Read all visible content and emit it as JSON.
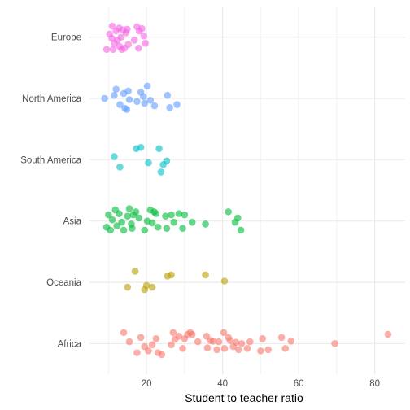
{
  "chart_data": {
    "type": "scatter",
    "title": "",
    "xlabel": "Student to teacher ratio",
    "ylabel": "",
    "xlim": [
      5,
      88
    ],
    "x_ticks": [
      20,
      40,
      60,
      80
    ],
    "x_tick_labels": [
      "20",
      "40",
      "60",
      "80"
    ],
    "grid": "major and minor vertical and horizontal",
    "legend": "none",
    "categories": [
      "Europe",
      "North America",
      "South America",
      "Asia",
      "Oceania",
      "Africa"
    ],
    "series": [
      {
        "category": "Europe",
        "color": "#F564E3",
        "points": [
          {
            "x": 9.5,
            "y": -0.2
          },
          {
            "x": 10.3,
            "y": 0.05
          },
          {
            "x": 11.0,
            "y": 0.18
          },
          {
            "x": 11.5,
            "y": -0.1
          },
          {
            "x": 12.0,
            "y": 0.1
          },
          {
            "x": 12.4,
            "y": -0.05
          },
          {
            "x": 12.8,
            "y": 0.15
          },
          {
            "x": 13.3,
            "y": 0.0
          },
          {
            "x": 13.8,
            "y": 0.12
          },
          {
            "x": 14.2,
            "y": -0.18
          },
          {
            "x": 14.6,
            "y": 0.07
          },
          {
            "x": 15.2,
            "y": -0.12
          },
          {
            "x": 11.2,
            "y": -0.2
          },
          {
            "x": 12.9,
            "y": -0.15
          },
          {
            "x": 17.5,
            "y": 0.17
          },
          {
            "x": 18.1,
            "y": 0.1
          },
          {
            "x": 18.8,
            "y": 0.14
          },
          {
            "x": 19.3,
            "y": 0.02
          },
          {
            "x": 16.8,
            "y": -0.05
          },
          {
            "x": 17.9,
            "y": -0.18
          },
          {
            "x": 19.7,
            "y": -0.1
          },
          {
            "x": 10.9,
            "y": -0.02
          },
          {
            "x": 14.9,
            "y": 0.13
          },
          {
            "x": 13.5,
            "y": -0.2
          }
        ]
      },
      {
        "category": "North America",
        "color": "#619CFF",
        "points": [
          {
            "x": 9.0,
            "y": 0.0
          },
          {
            "x": 11.5,
            "y": 0.05
          },
          {
            "x": 12.0,
            "y": 0.15
          },
          {
            "x": 13.0,
            "y": -0.1
          },
          {
            "x": 14.0,
            "y": 0.08
          },
          {
            "x": 14.3,
            "y": -0.16
          },
          {
            "x": 15.2,
            "y": 0.12
          },
          {
            "x": 15.5,
            "y": -0.02
          },
          {
            "x": 14.8,
            "y": -0.18
          },
          {
            "x": 17.5,
            "y": -0.05
          },
          {
            "x": 18.5,
            "y": 0.1
          },
          {
            "x": 19.2,
            "y": 0.03
          },
          {
            "x": 20.2,
            "y": 0.2
          },
          {
            "x": 21.0,
            "y": -0.03
          },
          {
            "x": 22.1,
            "y": -0.12
          },
          {
            "x": 25.5,
            "y": 0.05
          },
          {
            "x": 26.1,
            "y": -0.15
          },
          {
            "x": 28.0,
            "y": -0.1
          },
          {
            "x": 19.5,
            "y": -0.08
          }
        ]
      },
      {
        "category": "South America",
        "color": "#00BFC4",
        "points": [
          {
            "x": 11.5,
            "y": 0.05
          },
          {
            "x": 13.0,
            "y": -0.12
          },
          {
            "x": 17.3,
            "y": 0.18
          },
          {
            "x": 18.5,
            "y": 0.2
          },
          {
            "x": 20.5,
            "y": -0.05
          },
          {
            "x": 23.3,
            "y": 0.18
          },
          {
            "x": 23.8,
            "y": -0.2
          },
          {
            "x": 24.4,
            "y": -0.08
          },
          {
            "x": 25.3,
            "y": -0.02
          }
        ]
      },
      {
        "category": "Asia",
        "color": "#00BA38",
        "points": [
          {
            "x": 9.5,
            "y": -0.1
          },
          {
            "x": 10.0,
            "y": 0.1
          },
          {
            "x": 10.5,
            "y": -0.15
          },
          {
            "x": 11.0,
            "y": 0.02
          },
          {
            "x": 11.8,
            "y": 0.18
          },
          {
            "x": 12.2,
            "y": -0.08
          },
          {
            "x": 12.8,
            "y": 0.12
          },
          {
            "x": 13.5,
            "y": -0.02
          },
          {
            "x": 15.0,
            "y": 0.08
          },
          {
            "x": 15.5,
            "y": 0.2
          },
          {
            "x": 16.0,
            "y": -0.05
          },
          {
            "x": 16.5,
            "y": 0.1
          },
          {
            "x": 16.2,
            "y": -0.12
          },
          {
            "x": 17.2,
            "y": 0.15
          },
          {
            "x": 18.0,
            "y": 0.05
          },
          {
            "x": 19.5,
            "y": -0.15
          },
          {
            "x": 20.2,
            "y": 0.0
          },
          {
            "x": 21.0,
            "y": 0.18
          },
          {
            "x": 21.5,
            "y": -0.03
          },
          {
            "x": 22.0,
            "y": 0.15
          },
          {
            "x": 22.5,
            "y": 0.12
          },
          {
            "x": 23.0,
            "y": -0.1
          },
          {
            "x": 25.0,
            "y": 0.08
          },
          {
            "x": 25.3,
            "y": -0.12
          },
          {
            "x": 26.5,
            "y": 0.1
          },
          {
            "x": 27.2,
            "y": -0.02
          },
          {
            "x": 28.5,
            "y": 0.12
          },
          {
            "x": 29.5,
            "y": -0.12
          },
          {
            "x": 30.0,
            "y": 0.1
          },
          {
            "x": 32.0,
            "y": -0.02
          },
          {
            "x": 35.5,
            "y": -0.05
          },
          {
            "x": 41.5,
            "y": 0.15
          },
          {
            "x": 43.3,
            "y": -0.02
          },
          {
            "x": 44.0,
            "y": 0.05
          },
          {
            "x": 44.8,
            "y": -0.15
          },
          {
            "x": 14.0,
            "y": -0.15
          }
        ]
      },
      {
        "category": "Oceania",
        "color": "#B79F00",
        "points": [
          {
            "x": 15.0,
            "y": -0.08
          },
          {
            "x": 17.0,
            "y": 0.18
          },
          {
            "x": 19.5,
            "y": -0.12
          },
          {
            "x": 20.0,
            "y": -0.05
          },
          {
            "x": 21.5,
            "y": -0.08
          },
          {
            "x": 25.5,
            "y": 0.1
          },
          {
            "x": 26.5,
            "y": 0.12
          },
          {
            "x": 35.5,
            "y": 0.12
          },
          {
            "x": 40.5,
            "y": 0.02
          }
        ]
      },
      {
        "category": "Africa",
        "color": "#F8766D",
        "points": [
          {
            "x": 14.0,
            "y": 0.18
          },
          {
            "x": 15.5,
            "y": 0.03
          },
          {
            "x": 17.5,
            "y": -0.15
          },
          {
            "x": 18.5,
            "y": 0.1
          },
          {
            "x": 19.5,
            "y": -0.05
          },
          {
            "x": 20.5,
            "y": -0.12
          },
          {
            "x": 21.5,
            "y": -0.02
          },
          {
            "x": 22.5,
            "y": 0.08
          },
          {
            "x": 23.0,
            "y": -0.15
          },
          {
            "x": 24.0,
            "y": -0.18
          },
          {
            "x": 26.5,
            "y": -0.02
          },
          {
            "x": 27.0,
            "y": 0.18
          },
          {
            "x": 27.5,
            "y": 0.07
          },
          {
            "x": 28.5,
            "y": 0.12
          },
          {
            "x": 29.5,
            "y": -0.08
          },
          {
            "x": 30.0,
            "y": 0.08
          },
          {
            "x": 30.8,
            "y": 0.15
          },
          {
            "x": 31.5,
            "y": 0.18
          },
          {
            "x": 32.0,
            "y": 0.15
          },
          {
            "x": 33.5,
            "y": 0.03
          },
          {
            "x": 35.8,
            "y": 0.12
          },
          {
            "x": 36.0,
            "y": -0.07
          },
          {
            "x": 36.8,
            "y": 0.05
          },
          {
            "x": 37.5,
            "y": 0.04
          },
          {
            "x": 38.5,
            "y": -0.1
          },
          {
            "x": 39.0,
            "y": 0.03
          },
          {
            "x": 40.3,
            "y": 0.18
          },
          {
            "x": 40.5,
            "y": -0.08
          },
          {
            "x": 41.5,
            "y": 0.1
          },
          {
            "x": 42.0,
            "y": 0.05
          },
          {
            "x": 42.8,
            "y": -0.05
          },
          {
            "x": 43.5,
            "y": 0.02
          },
          {
            "x": 44.2,
            "y": -0.1
          },
          {
            "x": 45.0,
            "y": 0.0
          },
          {
            "x": 46.5,
            "y": -0.08
          },
          {
            "x": 47.2,
            "y": 0.03
          },
          {
            "x": 50.0,
            "y": -0.12
          },
          {
            "x": 50.5,
            "y": 0.08
          },
          {
            "x": 52.0,
            "y": -0.1
          },
          {
            "x": 55.5,
            "y": 0.1
          },
          {
            "x": 56.5,
            "y": -0.08
          },
          {
            "x": 58.0,
            "y": 0.04
          },
          {
            "x": 69.5,
            "y": 0.0
          },
          {
            "x": 83.5,
            "y": 0.15
          }
        ]
      }
    ]
  }
}
